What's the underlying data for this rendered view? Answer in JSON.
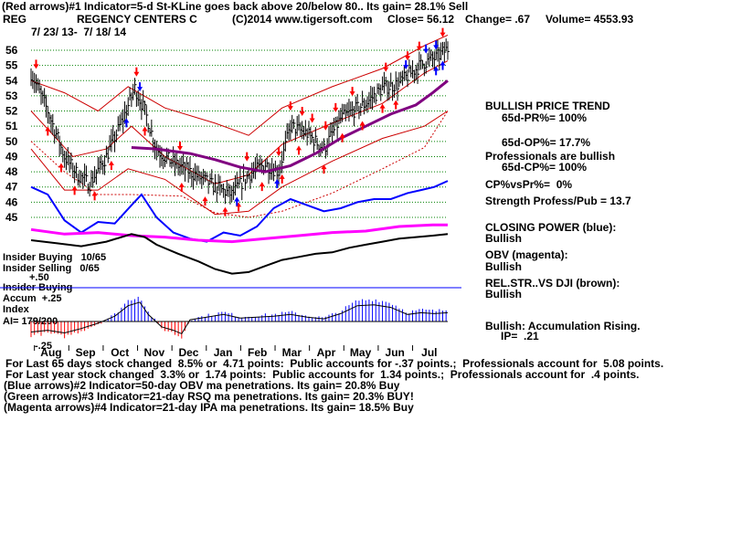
{
  "header": {
    "line1": "(Red arrows)#1 Indicator=5-d St-KLine goes back above 20/below 80.. Its gain= 28.1% Sell",
    "ticker": "REG",
    "company": "REGENCY CENTERS C",
    "copyright": "(C)2014 www.tigersoft.com",
    "close": "Close= 56.12",
    "change": "Change= .67",
    "volume": "Volume= 4553.93",
    "date_range": "7/ 23/ 13-  7/ 18/ 14"
  },
  "left_labels": {
    "insider_buying_count": "Insider Buying   10/65",
    "insider_selling": "Insider Selling   0/65",
    "plus_50": "+.50",
    "insider_buying": "Insider Buying",
    "accum": "Accum  +.25",
    "index": "Index",
    "ai": "AI= 179/200",
    "minus_25": "-.25"
  },
  "right_panel": {
    "bullish_trend": "BULLISH PRICE TREND",
    "pr": "65d-PR%= 100%",
    "op": "65d-OP%= 17.7%",
    "professionals": "Professionals are bullish",
    "cp": "65d-CP%= 100%",
    "cpvspr": "CP%vsPr%=  0%",
    "strength": "Strength Profess/Pub = 13.7",
    "closing_power": "CLOSING POWER (blue):",
    "closing_power_val": "Bullish",
    "obv": "OBV (magenta):",
    "obv_val": "Bullish",
    "relstr": "REL.STR..VS DJI (brown):",
    "relstr_val": "Bullish",
    "accum_rising": "Bullish: Accumulation Rising.",
    "ip": "IP=  .21"
  },
  "footer": {
    "line1": "For Last 65 days stock changed  8.5% or  4.71 points:  Public accounts for -.37 points.;  Professionals account for  5.08 points.",
    "line2": "For Last year stock changed  3.3% or  1.74 points:  Public accounts for  1.34 points.;  Professionals account for  .4 points.",
    "line3": "(Blue arrows)#2 Indicator=50-day OBV ma penetrations. Its gain= 20.8% Buy",
    "line4": "(Green arrows)#3 Indicator=21-day RSQ ma penetrations. Its gain= 20.3% BUY!",
    "line5": "(Magenta arrows)#4 Indicator=21-day IPA ma penetrations. Its gain= 18.5% Buy"
  },
  "colors": {
    "bars": "#000000",
    "band": "#cc0000",
    "ma": "#800080",
    "closing_power": "#0000ff",
    "obv": "#ff00ff",
    "relstr": "#000000",
    "grid": "#008000",
    "accum_pos": "#0000ff",
    "accum_neg": "#ff0000",
    "reference": "#0000ff",
    "arrow_red": "#ff0000",
    "arrow_blue": "#0000ff"
  },
  "chart_data": {
    "type": "line",
    "price_axis": {
      "ylim": [
        44,
        57
      ],
      "ticks": [
        45,
        46,
        47,
        48,
        49,
        50,
        51,
        52,
        53,
        54,
        55,
        56
      ]
    },
    "month_labels": [
      "Aug",
      "Sep",
      "Oct",
      "Nov",
      "Dec",
      "Jan",
      "Feb",
      "Mar",
      "Apr",
      "May",
      "Jun",
      "Jul"
    ],
    "n_days": 250,
    "price_points": [
      [
        0,
        54.5
      ],
      [
        10,
        52.0
      ],
      [
        20,
        49.0
      ],
      [
        28,
        47.8
      ],
      [
        35,
        47.2
      ],
      [
        45,
        49.0
      ],
      [
        55,
        51.5
      ],
      [
        62,
        53.5
      ],
      [
        68,
        52.0
      ],
      [
        75,
        49.5
      ],
      [
        82,
        48.8
      ],
      [
        95,
        48.0
      ],
      [
        110,
        47.0
      ],
      [
        120,
        46.5
      ],
      [
        130,
        47.8
      ],
      [
        140,
        48.5
      ],
      [
        148,
        48.0
      ],
      [
        155,
        51.0
      ],
      [
        165,
        50.5
      ],
      [
        175,
        49.5
      ],
      [
        185,
        51.5
      ],
      [
        200,
        52.5
      ],
      [
        210,
        53.5
      ],
      [
        220,
        53.8
      ],
      [
        228,
        54.6
      ],
      [
        235,
        55.2
      ],
      [
        242,
        55.5
      ],
      [
        249,
        56.1
      ]
    ],
    "upper_band": [
      [
        0,
        54.0
      ],
      [
        20,
        53.2
      ],
      [
        40,
        52.0
      ],
      [
        58,
        53.6
      ],
      [
        80,
        52.2
      ],
      [
        110,
        51.2
      ],
      [
        130,
        50.4
      ],
      [
        150,
        52.2
      ],
      [
        180,
        53.6
      ],
      [
        210,
        54.8
      ],
      [
        235,
        56.3
      ],
      [
        249,
        57.0
      ]
    ],
    "lower_band": [
      [
        0,
        49.5
      ],
      [
        20,
        46.8
      ],
      [
        40,
        46.8
      ],
      [
        58,
        48.2
      ],
      [
        80,
        47.5
      ],
      [
        110,
        45.2
      ],
      [
        130,
        45.4
      ],
      [
        150,
        47.0
      ],
      [
        180,
        48.7
      ],
      [
        210,
        50.2
      ],
      [
        235,
        51.0
      ],
      [
        249,
        52.0
      ]
    ],
    "inner_band": [
      [
        0,
        52.0
      ],
      [
        25,
        49.0
      ],
      [
        45,
        49.5
      ],
      [
        60,
        51.0
      ],
      [
        80,
        49.0
      ],
      [
        110,
        47.2
      ],
      [
        130,
        47.8
      ],
      [
        150,
        49.8
      ],
      [
        180,
        51.2
      ],
      [
        210,
        52.5
      ],
      [
        235,
        54.5
      ],
      [
        249,
        55.3
      ]
    ],
    "ma50": [
      [
        60,
        49.6
      ],
      [
        75,
        49.5
      ],
      [
        95,
        49.2
      ],
      [
        110,
        48.8
      ],
      [
        125,
        48.3
      ],
      [
        140,
        48.0
      ],
      [
        155,
        48.4
      ],
      [
        170,
        49.2
      ],
      [
        185,
        50.2
      ],
      [
        200,
        51.0
      ],
      [
        215,
        51.8
      ],
      [
        230,
        52.4
      ],
      [
        240,
        53.2
      ],
      [
        249,
        54.0
      ]
    ],
    "lower_ma": [
      [
        0,
        50.0
      ],
      [
        20,
        48.0
      ],
      [
        40,
        46.5
      ],
      [
        60,
        46.5
      ],
      [
        90,
        46.4
      ],
      [
        110,
        45.3
      ],
      [
        130,
        45.0
      ],
      [
        150,
        45.4
      ],
      [
        180,
        46.6
      ],
      [
        210,
        48.2
      ],
      [
        235,
        49.6
      ],
      [
        249,
        52.0
      ]
    ],
    "closing_power_points": [
      [
        0,
        47.0
      ],
      [
        10,
        46.5
      ],
      [
        20,
        44.8
      ],
      [
        30,
        44.0
      ],
      [
        40,
        44.7
      ],
      [
        50,
        44.6
      ],
      [
        60,
        45.8
      ],
      [
        66,
        46.5
      ],
      [
        75,
        45.0
      ],
      [
        85,
        44.0
      ],
      [
        95,
        43.6
      ],
      [
        105,
        43.4
      ],
      [
        115,
        44.0
      ],
      [
        125,
        43.8
      ],
      [
        135,
        44.4
      ],
      [
        145,
        45.6
      ],
      [
        155,
        46.2
      ],
      [
        165,
        45.8
      ],
      [
        175,
        45.4
      ],
      [
        185,
        45.6
      ],
      [
        195,
        46.0
      ],
      [
        205,
        46.2
      ],
      [
        215,
        46.2
      ],
      [
        225,
        46.6
      ],
      [
        233,
        46.8
      ],
      [
        241,
        47.0
      ],
      [
        249,
        47.4
      ]
    ],
    "obv_points": [
      [
        0,
        44.2
      ],
      [
        20,
        43.9
      ],
      [
        40,
        44.0
      ],
      [
        60,
        43.8
      ],
      [
        80,
        43.7
      ],
      [
        100,
        43.5
      ],
      [
        120,
        43.4
      ],
      [
        140,
        43.6
      ],
      [
        160,
        43.8
      ],
      [
        180,
        44.0
      ],
      [
        200,
        44.1
      ],
      [
        220,
        44.4
      ],
      [
        240,
        44.5
      ],
      [
        249,
        44.5
      ]
    ],
    "relstr_points": [
      [
        0,
        43.5
      ],
      [
        15,
        43.3
      ],
      [
        30,
        43.1
      ],
      [
        45,
        43.4
      ],
      [
        60,
        43.9
      ],
      [
        68,
        43.7
      ],
      [
        75,
        43.2
      ],
      [
        88,
        42.6
      ],
      [
        100,
        42.1
      ],
      [
        110,
        41.6
      ],
      [
        120,
        41.3
      ],
      [
        130,
        41.4
      ],
      [
        140,
        41.8
      ],
      [
        150,
        42.2
      ],
      [
        160,
        42.4
      ],
      [
        170,
        42.6
      ],
      [
        180,
        42.7
      ],
      [
        190,
        43.0
      ],
      [
        200,
        43.2
      ],
      [
        210,
        43.4
      ],
      [
        220,
        43.6
      ],
      [
        230,
        43.7
      ],
      [
        240,
        43.8
      ],
      [
        249,
        43.9
      ]
    ],
    "accum_points": [
      [
        0,
        -0.12
      ],
      [
        10,
        -0.1
      ],
      [
        20,
        -0.13
      ],
      [
        30,
        -0.08
      ],
      [
        40,
        -0.02
      ],
      [
        50,
        0.06
      ],
      [
        58,
        0.18
      ],
      [
        65,
        0.22
      ],
      [
        70,
        0.08
      ],
      [
        78,
        -0.06
      ],
      [
        85,
        -0.1
      ],
      [
        90,
        -0.14
      ],
      [
        95,
        0.02
      ],
      [
        105,
        0.05
      ],
      [
        115,
        0.08
      ],
      [
        125,
        0.04
      ],
      [
        135,
        0.05
      ],
      [
        145,
        0.06
      ],
      [
        155,
        0.08
      ],
      [
        165,
        0.05
      ],
      [
        175,
        0.03
      ],
      [
        185,
        0.09
      ],
      [
        195,
        0.18
      ],
      [
        205,
        0.19
      ],
      [
        215,
        0.16
      ],
      [
        225,
        0.08
      ],
      [
        233,
        0.1
      ],
      [
        241,
        0.09
      ],
      [
        249,
        0.1
      ]
    ],
    "red_arrows_up": [
      10,
      18,
      26,
      38,
      48,
      68,
      90,
      104,
      116,
      124,
      138,
      150,
      160,
      175,
      186,
      198,
      210,
      218
    ],
    "red_arrows_down": [
      3,
      63,
      89,
      129,
      148,
      155,
      162,
      168,
      176,
      182,
      192,
      212,
      225,
      232,
      246
    ],
    "blue_arrows_up": [
      57,
      123,
      147,
      242,
      246
    ],
    "blue_arrows_down": [
      65,
      224,
      236,
      242
    ]
  }
}
